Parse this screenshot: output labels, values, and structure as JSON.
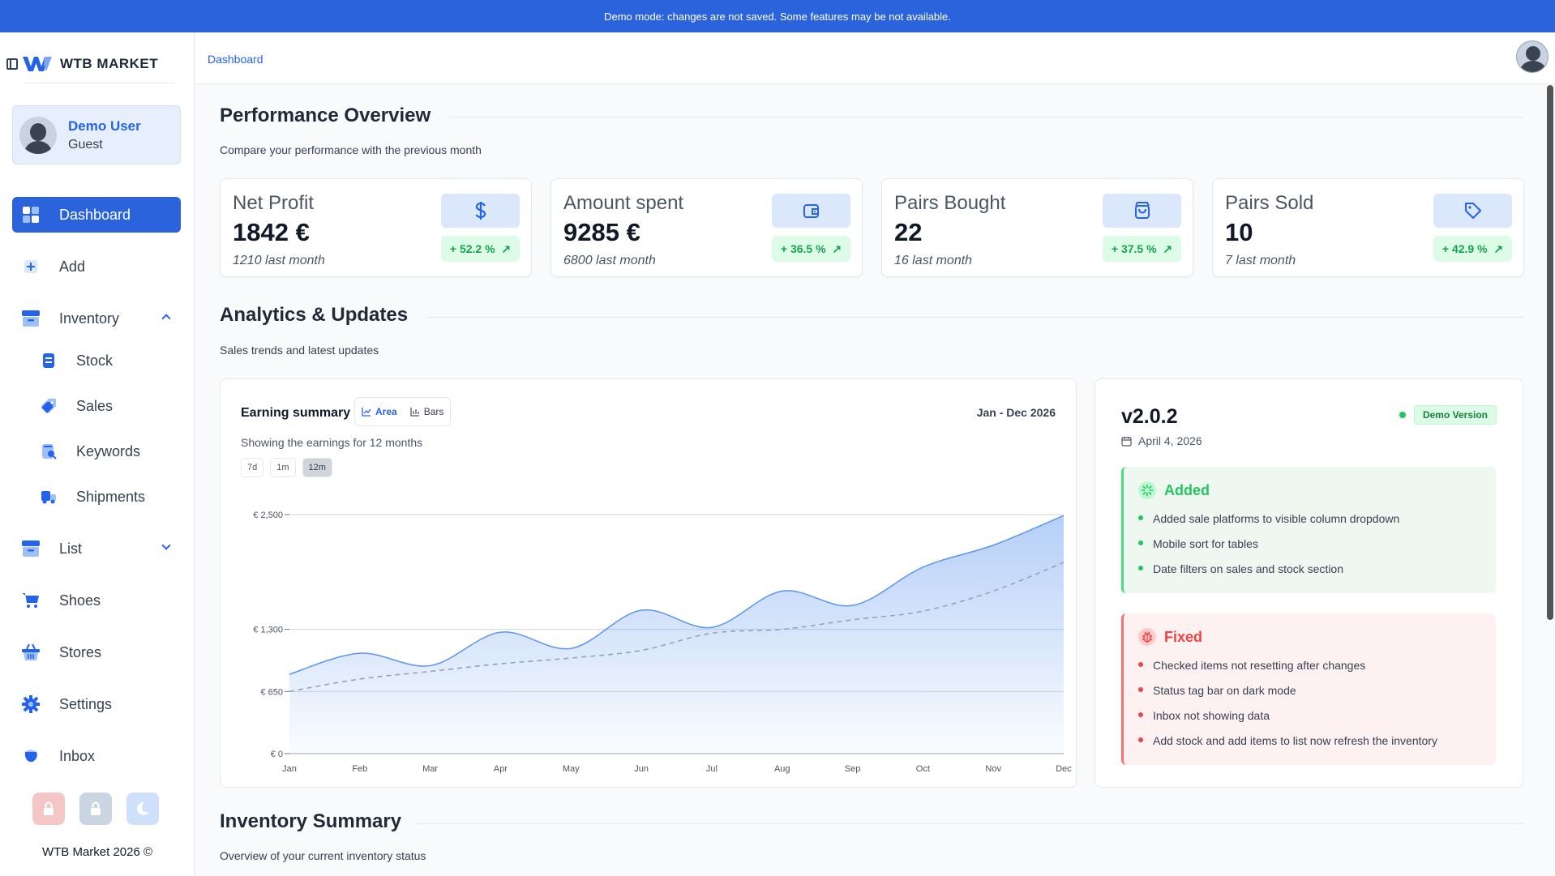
{
  "banner": "Demo mode: changes are not saved. Some features may be not available.",
  "brand": {
    "name": "WTB MARKET",
    "footer": "WTB Market 2026 ©"
  },
  "user": {
    "name": "Demo User",
    "role": "Guest"
  },
  "nav": {
    "dashboard": "Dashboard",
    "add": "Add",
    "inventory": "Inventory",
    "stock": "Stock",
    "sales": "Sales",
    "keywords": "Keywords",
    "shipments": "Shipments",
    "list": "List",
    "shoes": "Shoes",
    "stores": "Stores",
    "settings": "Settings",
    "inbox": "Inbox"
  },
  "breadcrumb": "Dashboard",
  "performance": {
    "title": "Performance Overview",
    "subtitle": "Compare your performance with the previous month",
    "stats": [
      {
        "label": "Net Profit",
        "value": "1842 €",
        "prev": "1210 last month",
        "pct": "+ 52.2 %",
        "icon": "dollar-icon"
      },
      {
        "label": "Amount spent",
        "value": "9285 €",
        "prev": "6800 last month",
        "pct": "+ 36.5 %",
        "icon": "wallet-icon"
      },
      {
        "label": "Pairs Bought",
        "value": "22",
        "prev": "16 last month",
        "pct": "+ 37.5 %",
        "icon": "shopping-bag-icon"
      },
      {
        "label": "Pairs Sold",
        "value": "10",
        "prev": "7 last month",
        "pct": "+ 42.9 %",
        "icon": "tag-icon"
      }
    ]
  },
  "analytics": {
    "title": "Analytics & Updates",
    "subtitle": "Sales trends and latest updates"
  },
  "earnings": {
    "title": "Earning summary",
    "toggle_area": "Area",
    "toggle_bars": "Bars",
    "range": "Jan - Dec 2026",
    "subtitle": "Showing the earnings for 12 months",
    "periods": [
      "7d",
      "1m",
      "12m"
    ]
  },
  "chart_data": {
    "type": "area",
    "categories": [
      "Jan",
      "Feb",
      "Mar",
      "Apr",
      "May",
      "Jun",
      "Jul",
      "Aug",
      "Sep",
      "Oct",
      "Nov",
      "Dec"
    ],
    "series": [
      {
        "values": [
          830,
          1050,
          920,
          1270,
          1100,
          1500,
          1320,
          1700,
          1550,
          1950,
          2180,
          2490
        ]
      },
      {
        "values": [
          650,
          780,
          860,
          940,
          1000,
          1080,
          1260,
          1300,
          1400,
          1490,
          1700,
          2000
        ]
      }
    ],
    "yticks": [
      "€ 0",
      "€ 650",
      "€ 1,300",
      "€ 2,500"
    ],
    "ytick_values": [
      0,
      650,
      1300,
      2500
    ],
    "ylim": [
      0,
      2500
    ],
    "colors": {
      "primary": "#5b95ee",
      "secondary": "#94a3b8"
    }
  },
  "updates": {
    "version": "v2.0.2",
    "date": "April 4, 2026",
    "badge": "Demo Version",
    "added_title": "Added",
    "added": [
      "Added sale platforms to visible column dropdown",
      "Mobile sort for tables",
      "Date filters on sales and stock section"
    ],
    "fixed_title": "Fixed",
    "fixed": [
      "Checked items not resetting after changes",
      "Status tag bar on dark mode",
      "Inbox not showing data",
      "Add stock and add items to list now refresh the inventory"
    ]
  },
  "inventory_summary": {
    "title": "Inventory Summary",
    "subtitle": "Overview of your current inventory status"
  }
}
